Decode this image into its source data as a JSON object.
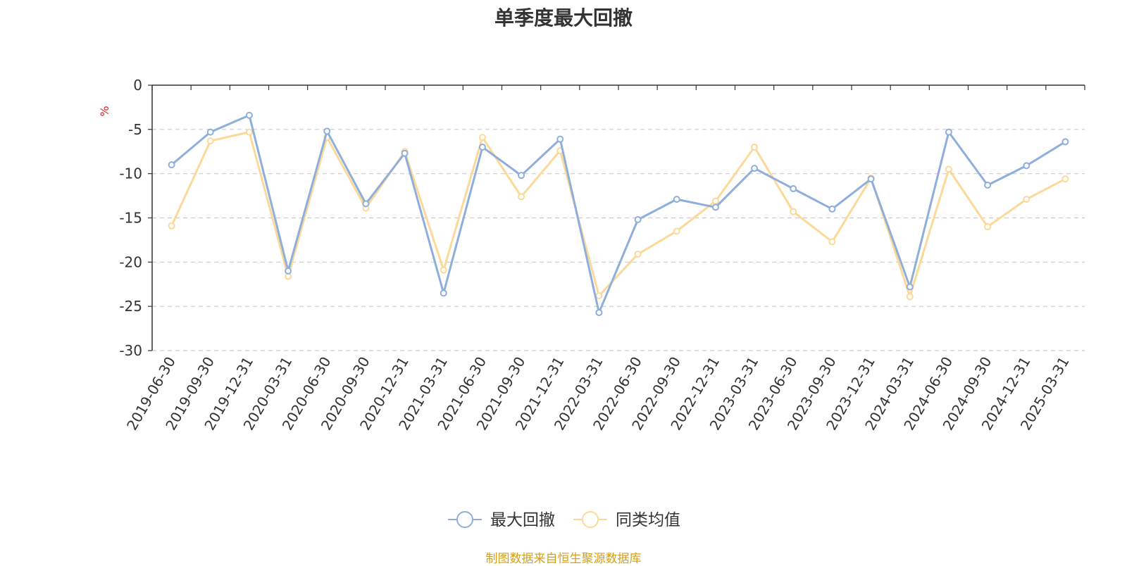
{
  "chart_data": {
    "type": "line",
    "title": "单季度最大回撤",
    "ylabel": "%",
    "ylim": [
      -30,
      0
    ],
    "yticks": [
      0,
      -5,
      -10,
      -15,
      -20,
      -25,
      -30
    ],
    "grid": true,
    "legend_position": "bottom",
    "categories": [
      "2019-06-30",
      "2019-09-30",
      "2019-12-31",
      "2020-03-31",
      "2020-06-30",
      "2020-09-30",
      "2020-12-31",
      "2021-03-31",
      "2021-06-30",
      "2021-09-30",
      "2021-12-31",
      "2022-03-31",
      "2022-06-30",
      "2022-09-30",
      "2022-12-31",
      "2023-03-31",
      "2023-06-30",
      "2023-09-30",
      "2023-12-31",
      "2024-03-31",
      "2024-06-30",
      "2024-09-30",
      "2024-12-31",
      "2025-03-31"
    ],
    "series": [
      {
        "name": "最大回撤",
        "color": "#8eaedb",
        "values": [
          -9.0,
          -5.3,
          -3.4,
          -21.0,
          -5.2,
          -13.4,
          -7.7,
          -23.5,
          -7.0,
          -10.2,
          -6.1,
          -25.7,
          -15.2,
          -12.9,
          -13.8,
          -9.4,
          -11.7,
          -14.0,
          -10.6,
          -22.8,
          -5.3,
          -11.3,
          -9.1,
          -6.4
        ]
      },
      {
        "name": "同类均值",
        "color": "#fcd999",
        "values": [
          -15.9,
          -6.3,
          -5.3,
          -21.6,
          -5.9,
          -13.9,
          -7.5,
          -20.9,
          -5.9,
          -12.6,
          -7.4,
          -23.8,
          -19.1,
          -16.5,
          -13.1,
          -7.0,
          -14.3,
          -17.7,
          -10.5,
          -23.9,
          -9.5,
          -16.0,
          -12.9,
          -10.6
        ]
      }
    ]
  },
  "source_text": "制图数据来自恒生聚源数据库",
  "colors": {
    "ylabel": "#e02020",
    "source": "#d4a017"
  }
}
